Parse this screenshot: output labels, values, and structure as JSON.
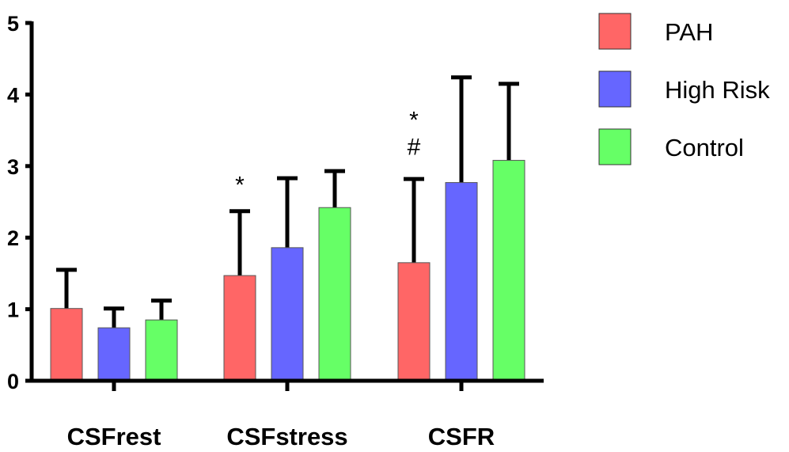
{
  "chart_data": {
    "type": "bar",
    "categories": [
      "CSFrest",
      "CSFstress",
      "CSFR"
    ],
    "series": [
      {
        "name": "PAH",
        "color": "#ff6666",
        "values": [
          1.01,
          1.47,
          1.65
        ],
        "errors": [
          0.54,
          0.9,
          1.17
        ]
      },
      {
        "name": "High Risk",
        "color": "#6666ff",
        "values": [
          0.74,
          1.86,
          2.77
        ],
        "errors": [
          0.27,
          0.97,
          1.47
        ]
      },
      {
        "name": "Control",
        "color": "#66ff66",
        "values": [
          0.85,
          2.42,
          3.08
        ],
        "errors": [
          0.27,
          0.51,
          1.07
        ]
      }
    ],
    "y_ticks": [
      "0",
      "1",
      "2",
      "3",
      "4",
      "5"
    ],
    "ylim": [
      0,
      5
    ],
    "annotations": [
      {
        "text": "*",
        "category": "CSFstress",
        "series": "PAH",
        "y": 2.87
      },
      {
        "text": "*",
        "category": "CSFR",
        "series": "PAH",
        "y": 3.78
      },
      {
        "text": "#",
        "category": "CSFR",
        "series": "PAH",
        "y": 3.29
      }
    ],
    "title": "",
    "xlabel": "",
    "ylabel": "",
    "grid": false,
    "legend_position": "top-right"
  }
}
